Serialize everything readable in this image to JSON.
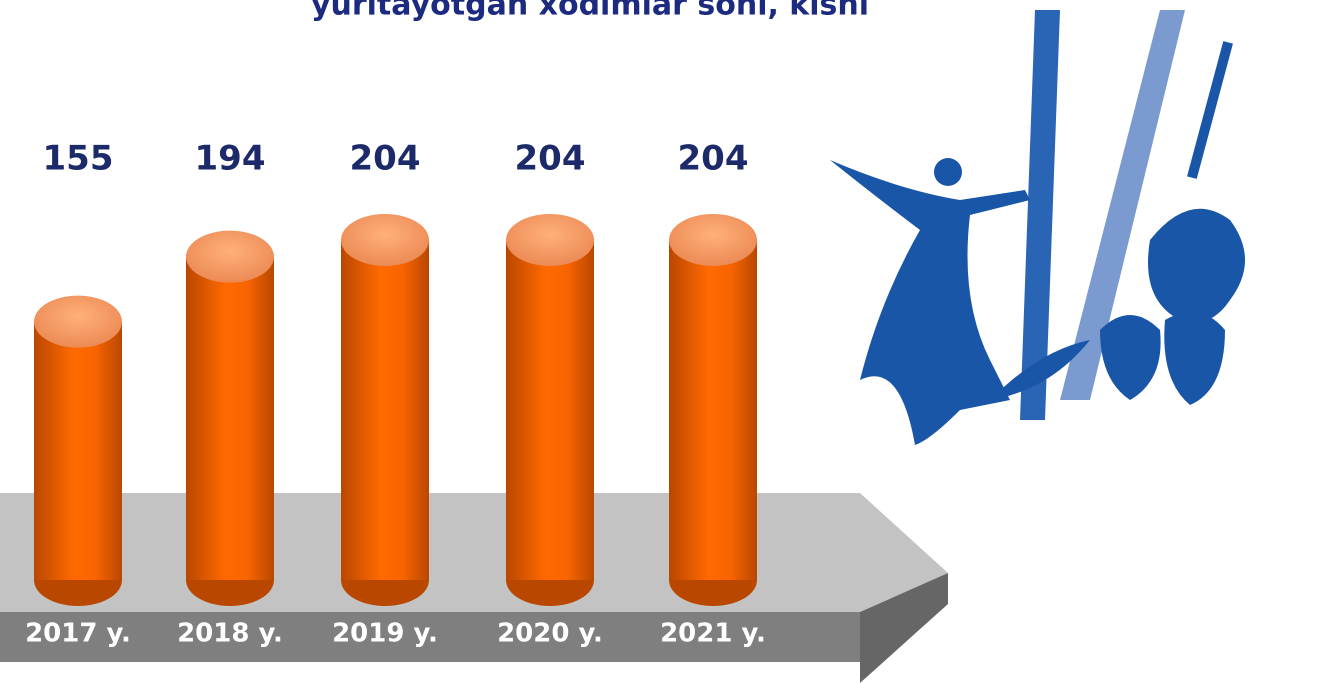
{
  "chart_data": {
    "type": "bar",
    "title": "yuritayotgan xodimlar soni, kishi",
    "categories": [
      "2017 y.",
      "2018 y.",
      "2019 y.",
      "2020 y.",
      "2021 y."
    ],
    "values": [
      155,
      194,
      204,
      204,
      204
    ],
    "color": "#ff6600"
  }
}
